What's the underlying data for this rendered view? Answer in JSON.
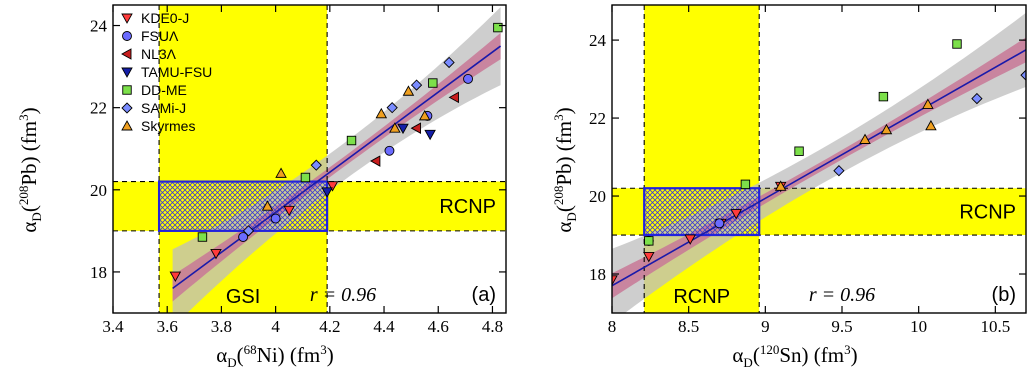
{
  "chart_data": [
    {
      "type": "scatter",
      "panel": "(a)",
      "xlabel": {
        "base": "α",
        "sub": "D",
        "open": "(",
        "sup": "68",
        "elem": "Ni",
        "unit": ") (fm",
        "unitsup": "3",
        "close": ")"
      },
      "ylabel": {
        "base": "α",
        "sub": "D",
        "open": "(",
        "sup": "208",
        "elem": "Pb",
        "unit": ") (fm",
        "unitsup": "3",
        "close": ")"
      },
      "xlim": [
        3.4,
        4.85
      ],
      "ylim": [
        17,
        24.5
      ],
      "xticks": [
        "3.4",
        "3.6",
        "3.8",
        "4",
        "4.2",
        "4.4",
        "4.6",
        "4.8"
      ],
      "yticks": [
        "18",
        "20",
        "22",
        "24"
      ],
      "correlation_label": "r = 0.96",
      "vband": {
        "label": "GSI",
        "range": [
          3.57,
          4.19
        ]
      },
      "hband": {
        "label": "RCNP",
        "range": [
          19.0,
          20.2
        ]
      },
      "overlap_box": {
        "x": [
          3.57,
          4.19
        ],
        "y": [
          19.0,
          20.2
        ]
      },
      "fit_line": {
        "x": [
          3.62,
          4.83
        ],
        "y": [
          17.6,
          23.5
        ]
      },
      "legend": [
        {
          "name": "KDE0-J",
          "marker": "triangle-down",
          "color": "#ff3b3b"
        },
        {
          "name": "FSUΛ",
          "marker": "circle",
          "color": "#6b6bff"
        },
        {
          "name": "NL3Λ",
          "marker": "triangle-left",
          "color": "#c81e1e"
        },
        {
          "name": "TAMU-FSU",
          "marker": "triangle-down",
          "color": "#141ea8"
        },
        {
          "name": "DD-ME",
          "marker": "square",
          "color": "#7ce04a"
        },
        {
          "name": "SAMi-J",
          "marker": "diamond",
          "color": "#7a8cff"
        },
        {
          "name": "Skyrmes",
          "marker": "triangle-up",
          "color": "#f0a020"
        }
      ],
      "series": [
        {
          "name": "KDE0-J",
          "points": [
            [
              3.63,
              17.9
            ],
            [
              3.78,
              18.45
            ],
            [
              4.05,
              19.5
            ],
            [
              4.21,
              20.1
            ]
          ]
        },
        {
          "name": "FSUΛ",
          "points": [
            [
              3.88,
              18.85
            ],
            [
              4.0,
              19.3
            ],
            [
              4.42,
              20.95
            ],
            [
              4.56,
              21.8
            ],
            [
              4.71,
              22.7
            ]
          ]
        },
        {
          "name": "NL3Λ",
          "points": [
            [
              4.37,
              20.7
            ],
            [
              4.52,
              21.5
            ],
            [
              4.66,
              22.25
            ]
          ]
        },
        {
          "name": "TAMU-FSU",
          "points": [
            [
              4.19,
              19.95
            ],
            [
              4.47,
              21.5
            ],
            [
              4.57,
              21.35
            ]
          ]
        },
        {
          "name": "DD-ME",
          "points": [
            [
              3.73,
              18.85
            ],
            [
              4.11,
              20.3
            ],
            [
              4.28,
              21.2
            ],
            [
              4.58,
              22.6
            ],
            [
              4.82,
              23.95
            ]
          ]
        },
        {
          "name": "SAMi-J",
          "points": [
            [
              3.9,
              19.0
            ],
            [
              4.15,
              20.6
            ],
            [
              4.43,
              22.0
            ],
            [
              4.52,
              22.55
            ],
            [
              4.64,
              23.1
            ]
          ]
        },
        {
          "name": "Skyrmes",
          "points": [
            [
              3.97,
              19.6
            ],
            [
              4.02,
              20.4
            ],
            [
              4.39,
              21.85
            ],
            [
              4.44,
              21.5
            ],
            [
              4.49,
              22.4
            ],
            [
              4.55,
              21.8
            ]
          ]
        }
      ]
    },
    {
      "type": "scatter",
      "panel": "(b)",
      "xlabel": {
        "base": "α",
        "sub": "D",
        "open": "(",
        "sup": "120",
        "elem": "Sn",
        "unit": ") (fm",
        "unitsup": "3",
        "close": ")"
      },
      "ylabel": {
        "base": "α",
        "sub": "D",
        "open": "(",
        "sup": "208",
        "elem": "Pb",
        "unit": ") (fm",
        "unitsup": "3",
        "close": ")"
      },
      "xlim": [
        8.0,
        10.7
      ],
      "ylim": [
        17.0,
        24.9
      ],
      "xticks": [
        "8",
        "8.5",
        "9",
        "9.5",
        "10",
        "10.5"
      ],
      "yticks": [
        "18",
        "20",
        "22",
        "24"
      ],
      "correlation_label": "r = 0.96",
      "vband": {
        "label": "RCNP",
        "range": [
          8.21,
          8.96
        ]
      },
      "hband": {
        "label": "RCNP",
        "range": [
          19.0,
          20.2
        ]
      },
      "overlap_box": {
        "x": [
          8.21,
          8.96
        ],
        "y": [
          19.0,
          20.2
        ]
      },
      "fit_line": {
        "x": [
          8.0,
          10.7
        ],
        "y": [
          17.7,
          23.75
        ]
      },
      "series": [
        {
          "name": "KDE0-J",
          "points": [
            [
              8.0,
              17.85
            ],
            [
              8.24,
              18.45
            ],
            [
              8.51,
              18.9
            ],
            [
              8.71,
              19.3
            ],
            [
              8.81,
              19.55
            ],
            [
              9.1,
              20.25
            ]
          ]
        },
        {
          "name": "FSUΛ",
          "points": [
            [
              8.24,
              18.85
            ],
            [
              8.7,
              19.3
            ]
          ]
        },
        {
          "name": "NL3Λ",
          "points": []
        },
        {
          "name": "TAMU-FSU",
          "points": []
        },
        {
          "name": "DD-ME",
          "points": [
            [
              8.24,
              18.85
            ],
            [
              8.87,
              20.3
            ],
            [
              9.22,
              21.15
            ],
            [
              9.77,
              22.55
            ],
            [
              10.25,
              23.9
            ]
          ]
        },
        {
          "name": "SAMi-J",
          "points": [
            [
              9.48,
              20.65
            ],
            [
              10.38,
              22.5
            ],
            [
              10.7,
              23.1
            ]
          ]
        },
        {
          "name": "Skyrmes",
          "points": [
            [
              9.1,
              20.25
            ],
            [
              9.65,
              21.45
            ],
            [
              9.79,
              21.7
            ],
            [
              10.06,
              22.35
            ],
            [
              10.08,
              21.8
            ]
          ]
        }
      ]
    }
  ]
}
